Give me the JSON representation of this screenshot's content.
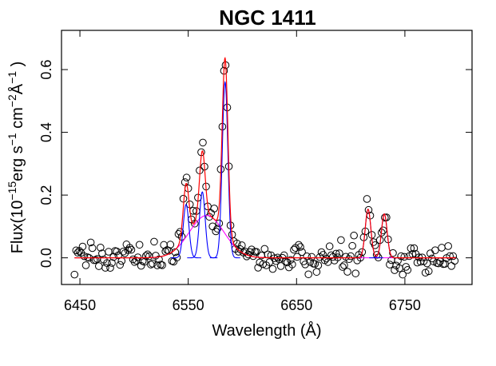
{
  "chart_data": {
    "type": "scatter",
    "title": "NGC 1411",
    "xlabel": "Wavelength (Å)",
    "ylabel": {
      "prefix": "Flux(10",
      "exp1": "−15",
      "mid1": "erg s",
      "exp2": "−1",
      "mid2": " cm",
      "exp3": "−2",
      "mid3": "Å",
      "exp4": "−1",
      "suffix": " )"
    },
    "xlim": [
      6433,
      6812
    ],
    "ylim": [
      -0.085,
      0.725
    ],
    "xticks": [
      6450,
      6550,
      6650,
      6750
    ],
    "xtick_labels": [
      "6450",
      "6550",
      "6650",
      "6750"
    ],
    "yticks": [
      0.0,
      0.2,
      0.4,
      0.6
    ],
    "ytick_labels": [
      "0.0",
      "0.2",
      "0.4",
      "0.6"
    ],
    "x_range": [
      6445,
      6797
    ],
    "x_step": 1.5,
    "series": [
      {
        "name": "observed flux",
        "type": "scatter",
        "marker": "open-circle",
        "color": "#000000"
      },
      {
        "name": "total fit",
        "type": "line",
        "color": "#ff0000"
      },
      {
        "name": "gaussian components",
        "type": "line",
        "color": "#0000ff"
      },
      {
        "name": "continuum",
        "type": "line",
        "color": "#ff00ff"
      }
    ],
    "broad_component": {
      "center": 6567,
      "amplitude": 0.135,
      "sigma": 16
    },
    "narrow_components": [
      {
        "line": "[NII] 6548",
        "center": 6548,
        "amplitude": 0.17,
        "sigma": 2.6
      },
      {
        "line": "H-alpha",
        "center": 6563,
        "amplitude": 0.21,
        "sigma": 2.6
      },
      {
        "line": "[NII] 6583",
        "center": 6584,
        "amplitude": 0.56,
        "sigma": 2.6
      },
      {
        "line": "[SII] 6716",
        "center": 6716,
        "amplitude": 0.155,
        "sigma": 2.6
      },
      {
        "line": "[SII] 6731",
        "center": 6731,
        "amplitude": 0.14,
        "sigma": 2.6
      }
    ],
    "continuum": 0.0,
    "noise_amplitude": 0.022
  }
}
